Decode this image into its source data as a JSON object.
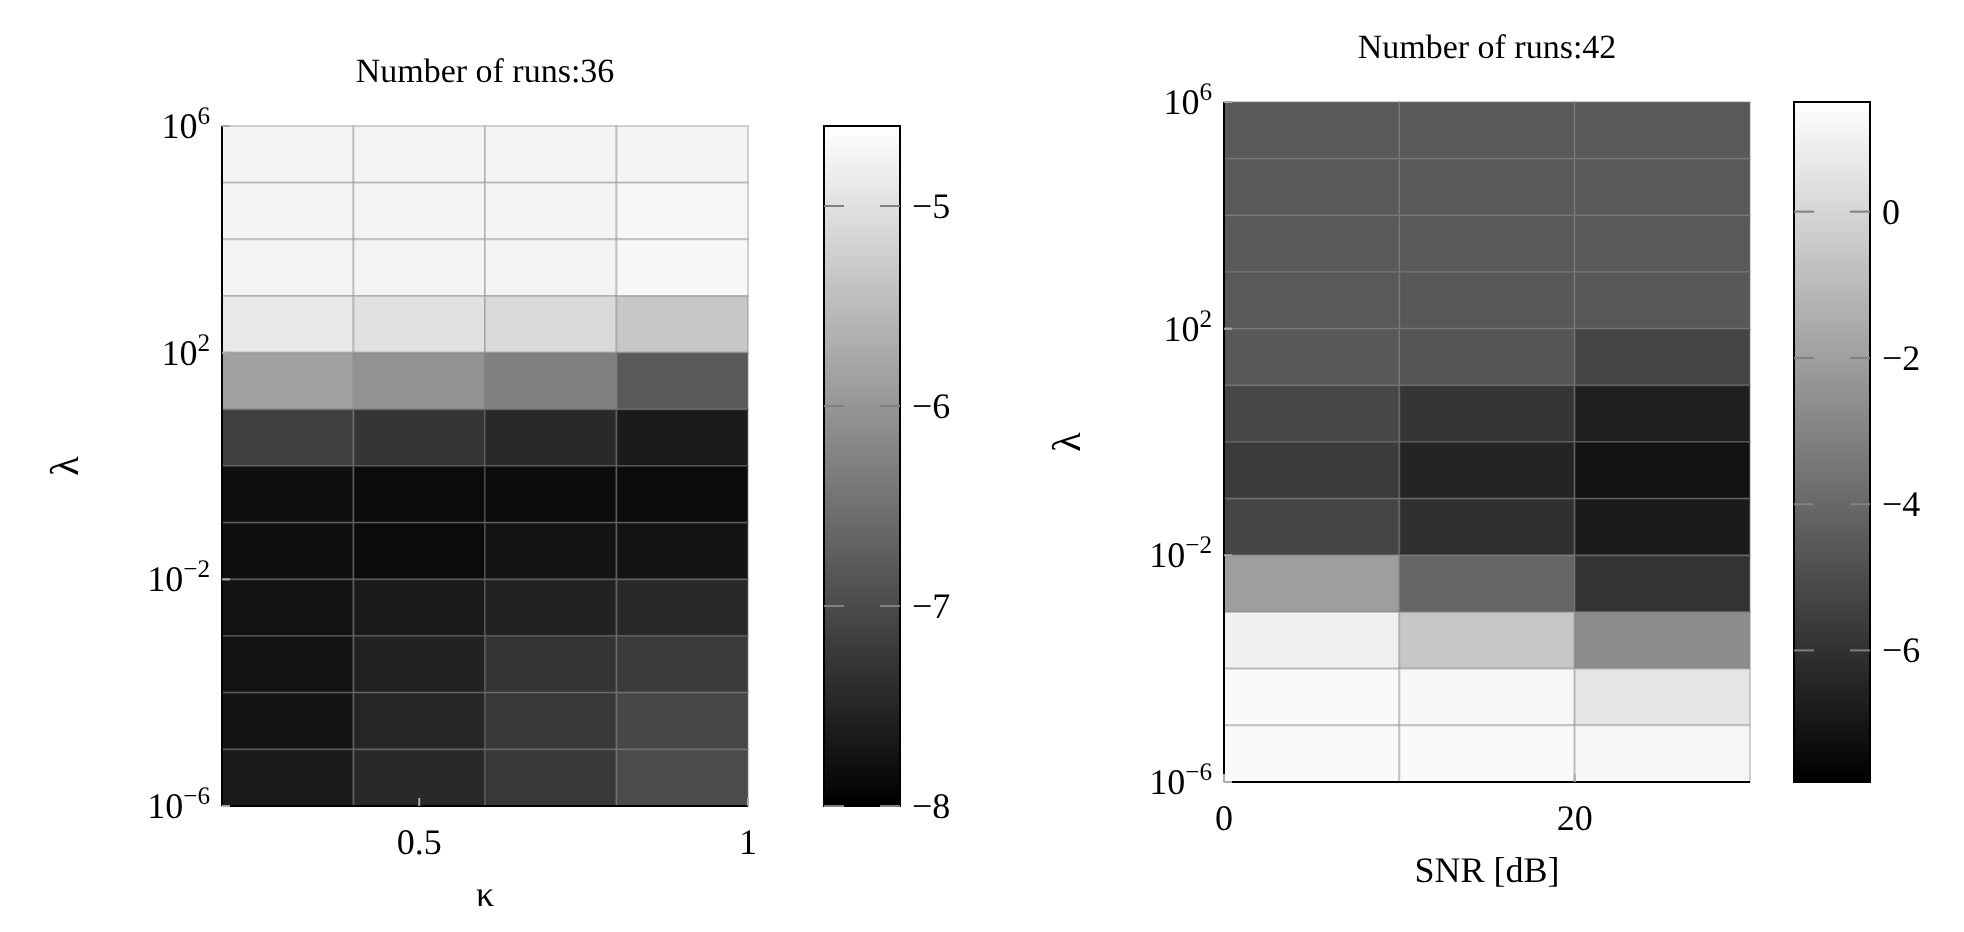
{
  "chart_data": [
    {
      "type": "heatmap",
      "title": "Number of runs:36",
      "xlabel": "κ",
      "ylabel": "λ",
      "log": "y",
      "xlim": [
        0.2,
        1
      ],
      "xticks": [
        0.5,
        1
      ],
      "ylim": [
        1e-06,
        1000000
      ],
      "yticks": [
        {
          "value": 1e-06,
          "label": "10$^{−6}$"
        },
        {
          "value": 0.01,
          "label": "10$^{−2}$"
        },
        {
          "value": 100,
          "label": "10$^{2}$"
        },
        {
          "value": 1000000,
          "label": "10$^{6}$"
        }
      ],
      "x": [
        0.3,
        0.5,
        0.7,
        0.9
      ],
      "y": [
        316228,
        31623,
        3162,
        316,
        31.6,
        3.16,
        0.316,
        0.0316,
        0.00316,
        0.000316,
        3.16e-05,
        3.16e-06
      ],
      "cells": [
        [
          -4.75,
          -4.75,
          -4.75,
          -4.75
        ],
        [
          -4.75,
          -4.75,
          -4.75,
          -4.7
        ],
        [
          -4.75,
          -4.75,
          -4.75,
          -4.7
        ],
        [
          -4.9,
          -5,
          -5.1,
          -5.35
        ],
        [
          -5.85,
          -6.05,
          -6.3,
          -6.8
        ],
        [
          -7.15,
          -7.3,
          -7.45,
          -7.65
        ],
        [
          -7.8,
          -7.85,
          -7.85,
          -7.85
        ],
        [
          -7.8,
          -7.85,
          -7.75,
          -7.75
        ],
        [
          -7.75,
          -7.65,
          -7.55,
          -7.45
        ],
        [
          -7.75,
          -7.55,
          -7.3,
          -7.2
        ],
        [
          -7.75,
          -7.5,
          -7.25,
          -7.05
        ],
        [
          -7.65,
          -7.45,
          -7.25,
          -7
        ]
      ],
      "clim": [
        -8,
        -4.6
      ],
      "cticks": [
        {
          "value": -5,
          "label": "−5"
        },
        {
          "value": -6,
          "label": "−6"
        },
        {
          "value": -7,
          "label": "−7"
        },
        {
          "value": -8,
          "label": "−8"
        }
      ]
    },
    {
      "type": "heatmap",
      "title": "Number of runs:42",
      "xlabel": "SNR [dB]",
      "ylabel": "λ",
      "log": "y",
      "xlim": [
        0,
        30
      ],
      "xticks": [
        0,
        20
      ],
      "ylim": [
        1e-06,
        1000000
      ],
      "yticks": [
        {
          "value": 1e-06,
          "label": "10$^{−6}$"
        },
        {
          "value": 0.01,
          "label": "10$^{−2}$"
        },
        {
          "value": 100,
          "label": "10$^{2}$"
        },
        {
          "value": 1000000,
          "label": "10$^{6}$"
        }
      ],
      "x": [
        5,
        15,
        25
      ],
      "y": [
        316228,
        31623,
        3162,
        316,
        31.6,
        3.16,
        0.316,
        0.0316,
        0.00316,
        0.000316,
        3.16e-05,
        3.16e-06
      ],
      "cells": [
        [
          -4.55,
          -4.55,
          -4.55
        ],
        [
          -4.55,
          -4.55,
          -4.55
        ],
        [
          -4.55,
          -4.55,
          -4.55
        ],
        [
          -4.55,
          -4.6,
          -4.6
        ],
        [
          -4.6,
          -4.7,
          -5.3
        ],
        [
          -5.2,
          -5.85,
          -6.7
        ],
        [
          -5.65,
          -6.5,
          -7.15
        ],
        [
          -5.3,
          -6.05,
          -6.8
        ],
        [
          -2.05,
          -4.1,
          -5.95
        ],
        [
          0.95,
          -0.55,
          -2.7
        ],
        [
          1.3,
          1.2,
          0.55
        ],
        [
          1.3,
          1.3,
          1.2
        ]
      ],
      "clim": [
        -7.8,
        1.5
      ],
      "cticks": [
        {
          "value": 0,
          "label": "0"
        },
        {
          "value": -2,
          "label": "−2"
        },
        {
          "value": -4,
          "label": "−4"
        },
        {
          "value": -6,
          "label": "−6"
        }
      ]
    }
  ]
}
